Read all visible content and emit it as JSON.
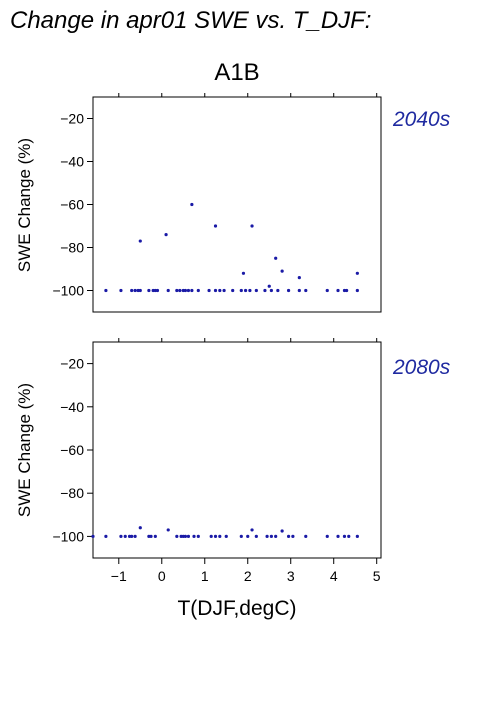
{
  "chart_data": {
    "type": "scatter",
    "title": "Change in apr01 SWE vs. T_DJF:",
    "scenario": "A1B",
    "xlabel": "T(DJF,degC)",
    "ylabel": "SWE Change (%)",
    "xlim": [
      -1.6,
      5.1
    ],
    "ylim": [
      -110,
      -10
    ],
    "xticks": [
      "-1",
      "0",
      "1",
      "2",
      "3",
      "4",
      "5"
    ],
    "yticks": [
      "-20",
      "-40",
      "-60",
      "-80",
      "-100"
    ],
    "point_color": "#1a1aa6",
    "label_color": "#1f2aa0",
    "panels": [
      {
        "label": "2040s",
        "x": [
          -1.3,
          -0.95,
          -0.7,
          -0.62,
          -0.55,
          -0.5,
          -0.3,
          -0.2,
          -0.15,
          -0.1,
          0.15,
          0.35,
          0.42,
          0.5,
          0.55,
          0.62,
          0.7,
          0.85,
          1.1,
          1.25,
          1.35,
          1.45,
          1.65,
          1.85,
          1.95,
          2.05,
          2.2,
          2.4,
          2.55,
          2.7,
          2.95,
          3.2,
          3.35,
          3.85,
          4.1,
          4.25,
          4.3,
          4.55,
          -0.5,
          0.1,
          0.7,
          1.25,
          2.1,
          1.9,
          2.5,
          2.65,
          2.8,
          3.2,
          4.55
        ],
        "y": [
          -100,
          -100,
          -100,
          -100,
          -100,
          -100,
          -100,
          -100,
          -100,
          -100,
          -100,
          -100,
          -100,
          -100,
          -100,
          -100,
          -100,
          -100,
          -100,
          -100,
          -100,
          -100,
          -100,
          -100,
          -100,
          -100,
          -100,
          -100,
          -100,
          -100,
          -100,
          -100,
          -100,
          -100,
          -100,
          -100,
          -100,
          -100,
          -77,
          -74,
          -60,
          -70,
          -70,
          -92,
          -98,
          -85,
          -91,
          -94,
          -92
        ]
      },
      {
        "label": "2080s",
        "x": [
          -1.6,
          -1.3,
          -0.95,
          -0.85,
          -0.75,
          -0.7,
          -0.62,
          -0.3,
          -0.25,
          -0.15,
          0.35,
          0.45,
          0.5,
          0.55,
          0.62,
          0.75,
          0.85,
          1.15,
          1.25,
          1.35,
          1.5,
          1.85,
          2.0,
          2.2,
          2.45,
          2.55,
          2.65,
          2.95,
          3.05,
          3.35,
          3.85,
          4.1,
          4.25,
          4.35,
          4.55,
          -0.5,
          0.15,
          2.1,
          2.8
        ],
        "y": [
          -100,
          -100,
          -100,
          -100,
          -100,
          -100,
          -100,
          -100,
          -100,
          -100,
          -100,
          -100,
          -100,
          -100,
          -100,
          -100,
          -100,
          -100,
          -100,
          -100,
          -100,
          -100,
          -100,
          -100,
          -100,
          -100,
          -100,
          -100,
          -100,
          -100,
          -100,
          -100,
          -100,
          -100,
          -100,
          -96,
          -97,
          -97,
          -97.5
        ]
      }
    ]
  }
}
